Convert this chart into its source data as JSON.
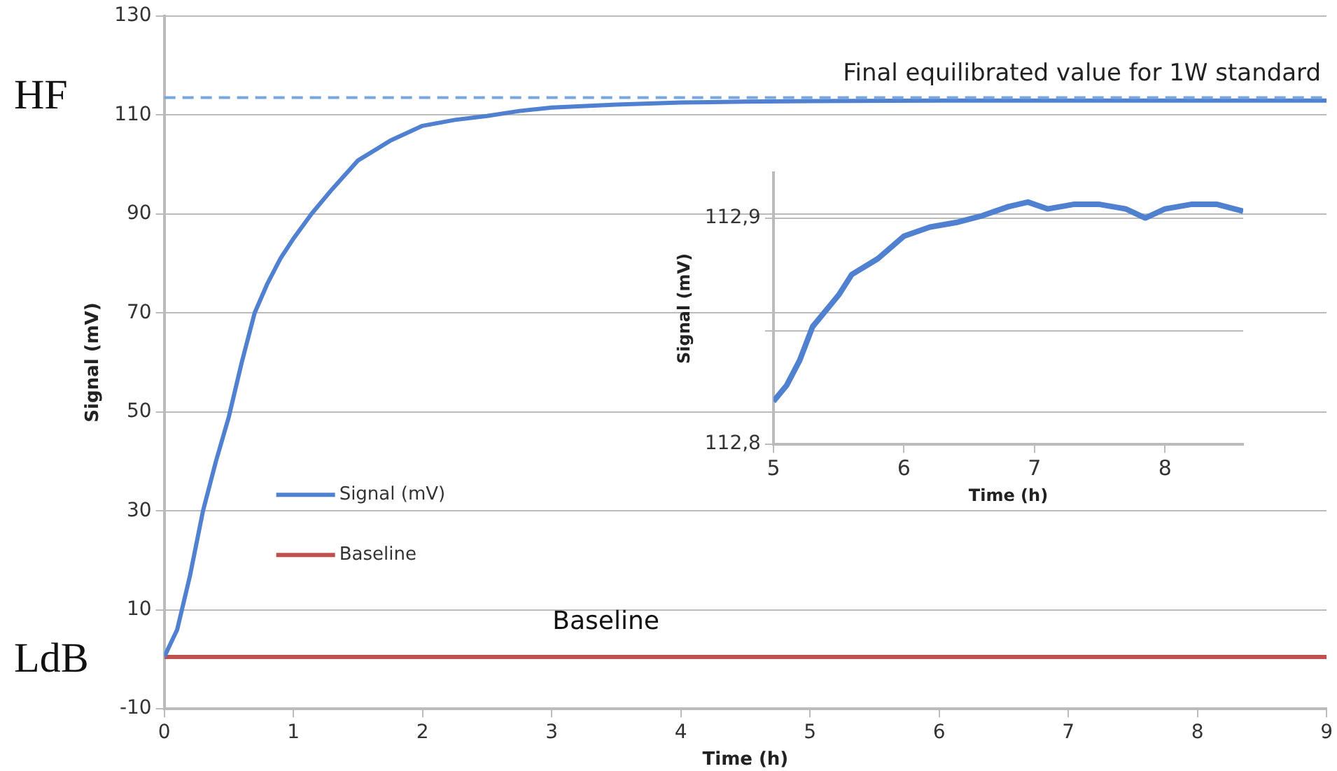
{
  "chart_data": [
    {
      "type": "line",
      "xlabel": "Time (h)",
      "ylabel": "Signal (mV)",
      "series": [
        {
          "name": "Signal (mV)",
          "color": "#4f81d0",
          "x": [
            0,
            0.1,
            0.2,
            0.3,
            0.4,
            0.5,
            0.6,
            0.7,
            0.8,
            0.9,
            1.0,
            1.14,
            1.3,
            1.5,
            1.75,
            2.0,
            2.25,
            2.5,
            2.75,
            3.0,
            3.5,
            4.0,
            4.5,
            5.0,
            6.0,
            7.0,
            8.0,
            9.0
          ],
          "values": [
            0.5,
            6,
            17,
            30,
            40,
            49,
            60,
            70,
            76,
            81,
            85,
            90,
            95,
            100.8,
            104.8,
            107.8,
            109,
            109.8,
            110.8,
            111.5,
            112.1,
            112.5,
            112.7,
            112.8,
            112.9,
            112.9,
            112.9,
            112.9
          ]
        },
        {
          "name": "Baseline",
          "color": "#c0504d",
          "x": [
            0,
            9
          ],
          "values": [
            0.5,
            0.5
          ]
        }
      ],
      "xlim": [
        0,
        9
      ],
      "xticks": [
        0,
        1,
        2,
        3,
        4,
        5,
        6,
        7,
        8,
        9
      ],
      "ylim": [
        -10,
        130
      ],
      "yticks": [
        -10,
        10,
        30,
        50,
        70,
        90,
        110,
        130
      ],
      "grid": "y",
      "legend": "bottom left",
      "marker": "none",
      "line_style": "solid",
      "ref_lines": [
        {
          "axis": "y",
          "value": 113.5,
          "label": "Final equilibrated value for 1W standard",
          "color": "#7aa6de",
          "line_style": "dashed"
        }
      ],
      "annotations": [
        "HF",
        "LdB",
        "Baseline"
      ]
    },
    {
      "type": "line",
      "xlabel": "Time (h)",
      "ylabel": "Signal (mV)",
      "x": [
        5.0,
        5.1,
        5.2,
        5.3,
        5.4,
        5.5,
        5.6,
        5.8,
        6.0,
        6.2,
        6.4,
        6.6,
        6.8,
        6.95,
        7.1,
        7.3,
        7.5,
        7.7,
        7.85,
        8.0,
        8.2,
        8.4,
        8.6
      ],
      "series": [
        {
          "color": "#4f81d0",
          "values": [
            112.819,
            112.826,
            112.837,
            112.852,
            112.859,
            112.866,
            112.875,
            112.882,
            112.892,
            112.896,
            112.898,
            112.901,
            112.905,
            112.907,
            112.904,
            112.906,
            112.906,
            112.904,
            112.9,
            112.904,
            112.906,
            112.906,
            112.903
          ]
        }
      ],
      "xlim": [
        5,
        8.6
      ],
      "xticks": [
        5,
        6,
        7,
        8
      ],
      "ylim": [
        112.8,
        112.92
      ],
      "yticks": [
        {
          "value": 112.8,
          "label": "112,8"
        },
        {
          "value": 112.85,
          "label": null
        },
        {
          "value": 112.9,
          "label": "112,9"
        }
      ],
      "grid": "y",
      "marker": "none",
      "line_style": "solid"
    }
  ]
}
